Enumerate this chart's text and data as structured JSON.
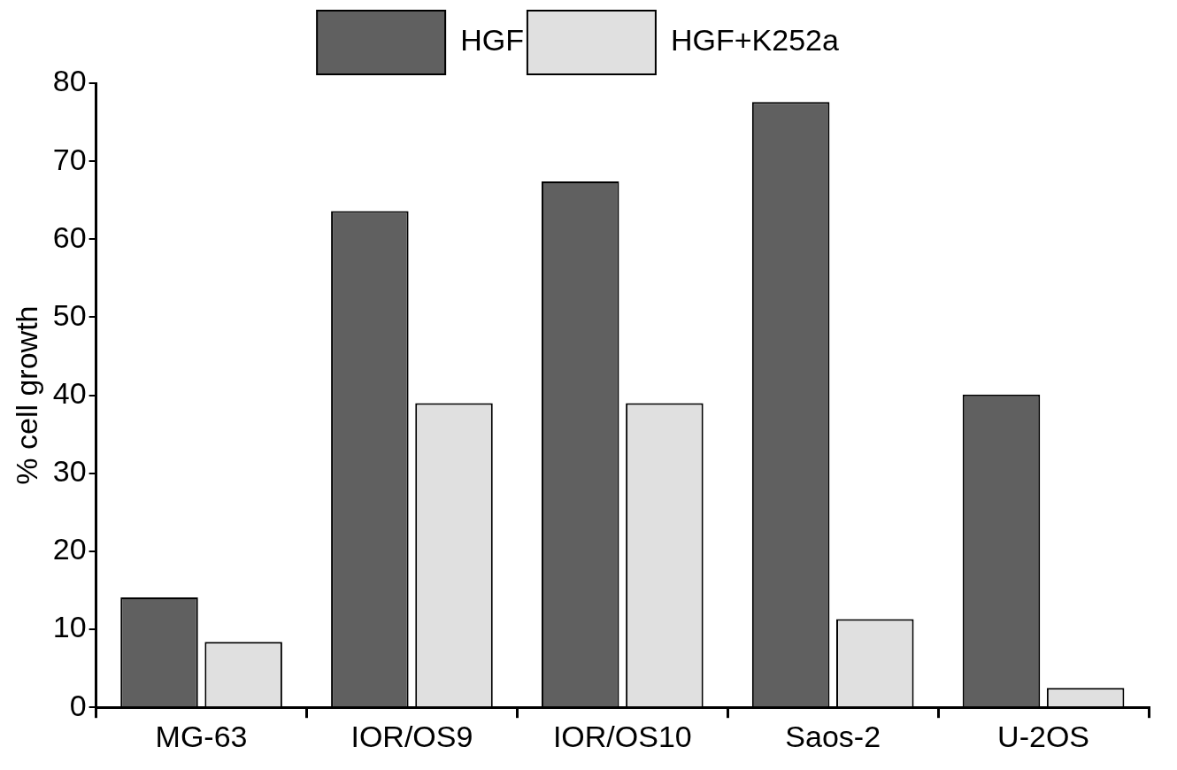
{
  "chart_data": {
    "type": "bar",
    "ylabel": "% cell growth",
    "categories": [
      "MG-63",
      "IOR/OS9",
      "IOR/OS10",
      "Saos-2",
      "U-2OS"
    ],
    "series": [
      {
        "name": "HGF",
        "color": "#606060",
        "values": [
          14.1,
          63.6,
          67.4,
          77.6,
          40.1
        ]
      },
      {
        "name": "HGF+K252a",
        "color": "#e0e0e0",
        "values": [
          8.4,
          39,
          39,
          11.3,
          2.5
        ]
      }
    ],
    "ylim": [
      0,
      80
    ],
    "yticks": [
      0,
      10,
      20,
      30,
      40,
      50,
      60,
      70,
      80
    ],
    "grid": false,
    "legend": "top"
  }
}
